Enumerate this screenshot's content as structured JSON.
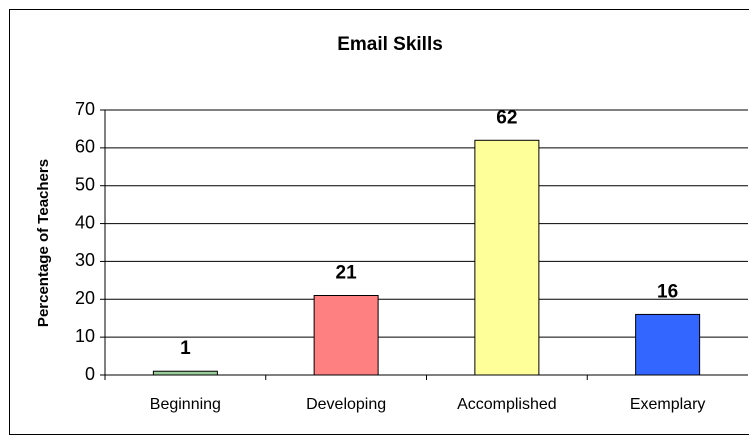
{
  "chart_data": {
    "type": "bar",
    "title": "Email Skills",
    "ylabel": "Percentage of Teachers",
    "categories": [
      "Beginning",
      "Developing",
      "Accomplished",
      "Exemplary"
    ],
    "values": [
      1,
      21,
      62,
      16
    ],
    "colors": [
      "#99cc99",
      "#ff8080",
      "#ffff99",
      "#3366ff"
    ],
    "ylim": [
      0,
      70
    ],
    "yticks": [
      0,
      10,
      20,
      30,
      40,
      50,
      60,
      70
    ],
    "grid": true
  }
}
